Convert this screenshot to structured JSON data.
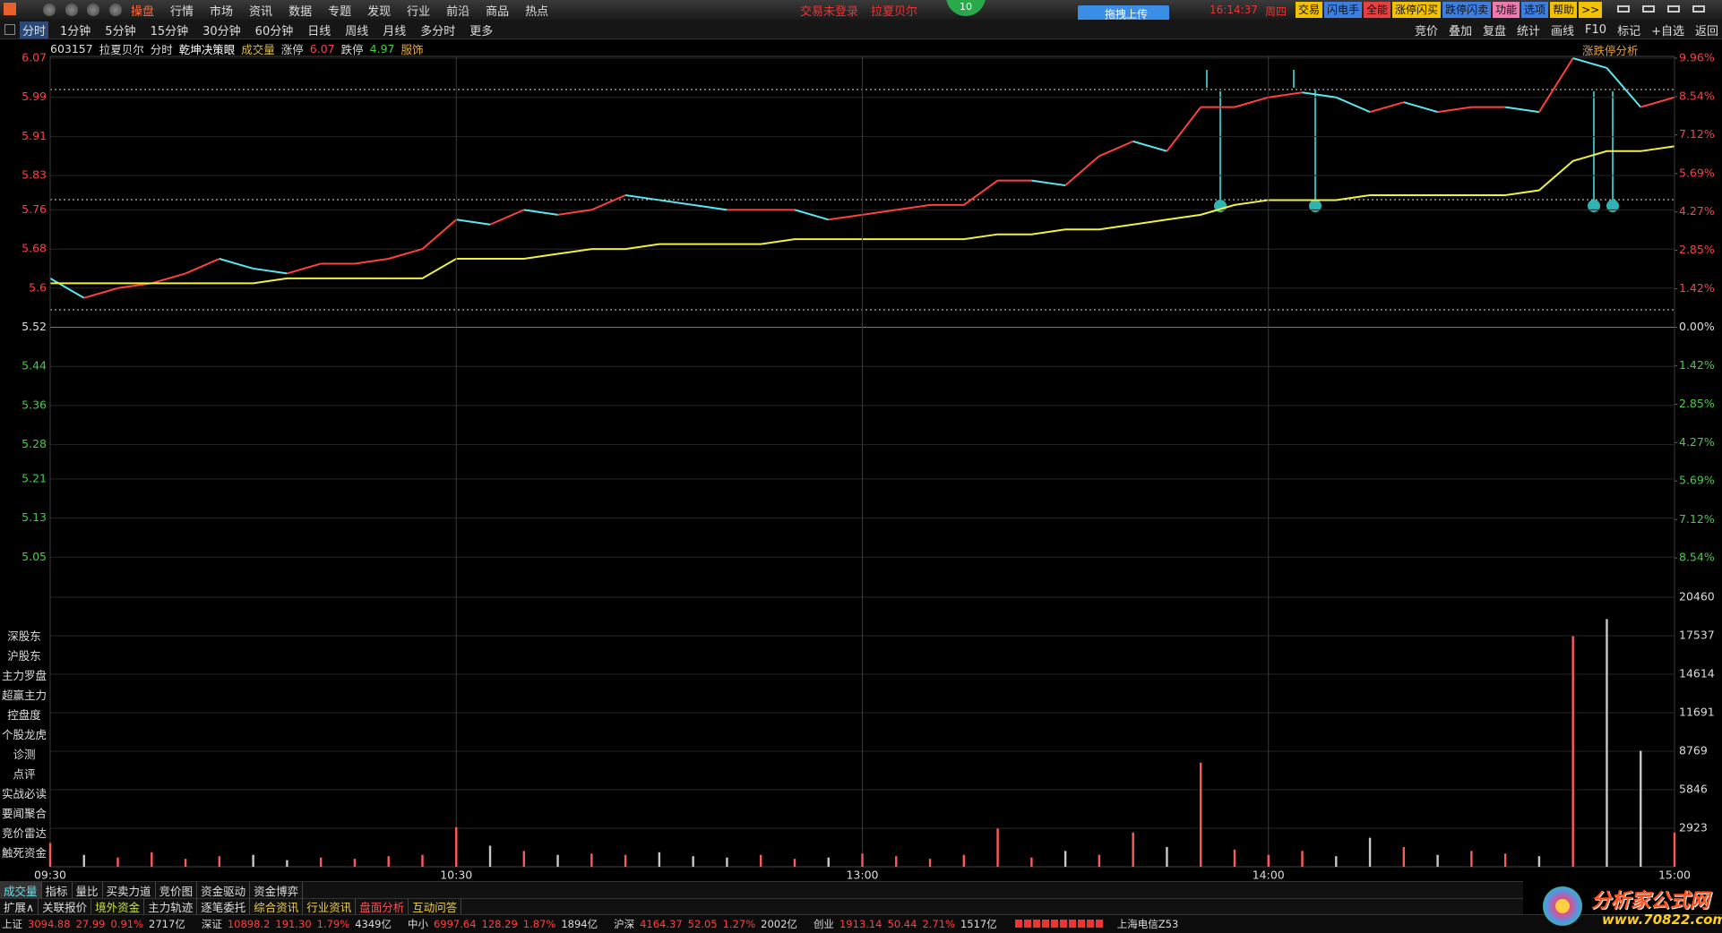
{
  "menu": {
    "items": [
      "操盘",
      "行情",
      "市场",
      "资讯",
      "数据",
      "专题",
      "发现",
      "行业",
      "前沿",
      "商品",
      "热点"
    ],
    "notice": "交易未登录",
    "stock": "拉夏贝尔",
    "badge": "10",
    "upload": "拖拽上传",
    "time": "16:14:37",
    "weekday": "周四",
    "buttons": [
      "交易",
      "闪电手",
      "全能",
      "涨停闪买",
      "跌停闪卖",
      "功能",
      "选项",
      "帮助",
      ">>"
    ]
  },
  "toolbar": {
    "periods": [
      "分时",
      "1分钟",
      "5分钟",
      "15分钟",
      "30分钟",
      "60分钟",
      "日线",
      "周线",
      "月线",
      "多分时",
      "更多"
    ],
    "tools": [
      "竞价",
      "叠加",
      "复盘",
      "统计",
      "画线",
      "F10",
      "标记",
      "+自选",
      "返回"
    ]
  },
  "info": {
    "code": "603157",
    "name": "拉夏贝尔",
    "mode": "分时",
    "strategy": "乾坤决策眼",
    "volume_label": "成交量",
    "limit_up_label": "涨停",
    "limit_up": "6.07",
    "limit_down_label": "跌停",
    "limit_down": "4.97",
    "industry": "服饰",
    "panel": "涨跌停分析"
  },
  "chart_data": [
    {
      "type": "line",
      "x": [
        0,
        5,
        10,
        15,
        20,
        25,
        30,
        35,
        40,
        45,
        50,
        55,
        60,
        65,
        70,
        75,
        80,
        85,
        90,
        95,
        100,
        105,
        110,
        115,
        120,
        125,
        130,
        135,
        140,
        145,
        150,
        155,
        160,
        165,
        170,
        175,
        180,
        185,
        190,
        195,
        200,
        205,
        210,
        215,
        220,
        225,
        230,
        235,
        240
      ],
      "xlim": [
        0,
        240
      ],
      "ylim": [
        4.97,
        6.07
      ],
      "yticks": [
        6.07,
        5.99,
        5.91,
        5.83,
        5.76,
        5.68,
        5.6,
        5.52,
        5.44,
        5.36,
        5.28,
        5.21,
        5.13,
        5.05
      ],
      "y2lim": [
        -9.96,
        9.96
      ],
      "y2ticks": [
        {
          "value": 9.96,
          "label": "9.96%"
        },
        {
          "value": 8.54,
          "label": "8.54%"
        },
        {
          "value": 7.12,
          "label": "7.12%"
        },
        {
          "value": 5.69,
          "label": "5.69%"
        },
        {
          "value": 4.27,
          "label": "4.27%"
        },
        {
          "value": 2.85,
          "label": "2.85%"
        },
        {
          "value": 1.42,
          "label": "1.42%"
        },
        {
          "value": 0,
          "label": "0.00%"
        },
        {
          "value": -1.42,
          "label": "1.42%"
        },
        {
          "value": -2.85,
          "label": "2.85%"
        },
        {
          "value": -4.27,
          "label": "4.27%"
        },
        {
          "value": -5.69,
          "label": "5.69%"
        },
        {
          "value": -7.12,
          "label": "7.12%"
        },
        {
          "value": -8.54,
          "label": "8.54%"
        }
      ],
      "grid": true,
      "series": [
        {
          "color": "#ff4040",
          "down_color": "#5ae6f0",
          "values": [
            5.62,
            5.58,
            5.6,
            5.61,
            5.63,
            5.66,
            5.64,
            5.63,
            5.65,
            5.65,
            5.66,
            5.68,
            5.74,
            5.73,
            5.76,
            5.75,
            5.76,
            5.79,
            5.78,
            5.77,
            5.76,
            5.76,
            5.76,
            5.74,
            5.75,
            5.76,
            5.77,
            5.77,
            5.82,
            5.82,
            5.81,
            5.87,
            5.9,
            5.88,
            5.97,
            5.97,
            5.99,
            6.0,
            5.99,
            5.96,
            5.98,
            5.96,
            5.97,
            5.97,
            5.96,
            6.07,
            6.05,
            5.97,
            5.99
          ]
        },
        {
          "color": "#f0f040",
          "values": [
            5.61,
            5.61,
            5.61,
            5.61,
            5.61,
            5.61,
            5.61,
            5.62,
            5.62,
            5.62,
            5.62,
            5.62,
            5.66,
            5.66,
            5.66,
            5.67,
            5.68,
            5.68,
            5.69,
            5.69,
            5.69,
            5.69,
            5.7,
            5.7,
            5.7,
            5.7,
            5.7,
            5.7,
            5.71,
            5.71,
            5.72,
            5.72,
            5.73,
            5.74,
            5.75,
            5.77,
            5.78,
            5.78,
            5.78,
            5.79,
            5.79,
            5.79,
            5.79,
            5.79,
            5.8,
            5.86,
            5.88,
            5.88,
            5.89
          ]
        }
      ]
    },
    {
      "type": "bar",
      "x": [
        0,
        5,
        10,
        15,
        20,
        25,
        30,
        35,
        40,
        45,
        50,
        55,
        60,
        65,
        70,
        75,
        80,
        85,
        90,
        95,
        100,
        105,
        110,
        115,
        120,
        125,
        130,
        135,
        140,
        145,
        150,
        155,
        160,
        165,
        170,
        175,
        180,
        185,
        190,
        195,
        200,
        205,
        210,
        215,
        220,
        225,
        230,
        235,
        240
      ],
      "xlim": [
        0,
        240
      ],
      "xticks": [
        {
          "value": 0,
          "label": "09:30"
        },
        {
          "value": 60,
          "label": "10:30"
        },
        {
          "value": 120,
          "label": "13:00"
        },
        {
          "value": 180,
          "label": "14:00"
        },
        {
          "value": 240,
          "label": "15:00"
        }
      ],
      "ylim": [
        0,
        20460
      ],
      "yticks": [
        20460,
        17537,
        14614,
        11691,
        8769,
        5846,
        2923
      ],
      "grid": true,
      "up_color": "#ff5a5a",
      "down_color": "#c8c8c8",
      "values": [
        1800,
        900,
        700,
        1100,
        600,
        800,
        900,
        500,
        700,
        600,
        800,
        900,
        3000,
        1600,
        1200,
        900,
        1000,
        900,
        1100,
        800,
        700,
        900,
        600,
        700,
        1000,
        800,
        600,
        900,
        2900,
        700,
        1200,
        900,
        2600,
        1500,
        7900,
        1300,
        900,
        1200,
        800,
        2200,
        1500,
        900,
        1200,
        1000,
        800,
        17500,
        18800,
        8800,
        2600
      ]
    }
  ],
  "side_panel": [
    "深股东",
    "沪股东",
    "主力罗盘",
    "超赢主力",
    "控盘度",
    "个股龙虎",
    "诊测",
    "点评",
    "实战必读",
    "要闻聚合",
    "竞价雷达",
    "触死资金"
  ],
  "tabs_row1": [
    "成交量",
    "指标",
    "量比",
    "买卖力道",
    "竞价图",
    "资金驱动",
    "资金博弈"
  ],
  "tabs_row2": [
    "扩展∧",
    "关联报价",
    "境外资金",
    "主力轨迹",
    "逐笔委托",
    "综合资讯",
    "行业资讯",
    "盘面分析",
    "互动问答"
  ],
  "status": {
    "indices": [
      {
        "name": "上证",
        "price": "3094.88",
        "change": "27.99",
        "pct": "0.91%",
        "amount": "2717亿"
      },
      {
        "name": "深证",
        "price": "10898.2",
        "change": "191.30",
        "pct": "1.79%",
        "amount": "4349亿"
      },
      {
        "name": "中小",
        "price": "6997.64",
        "change": "128.29",
        "pct": "1.87%",
        "amount": "1894亿"
      },
      {
        "name": "沪深",
        "price": "4164.37",
        "change": "52.05",
        "pct": "1.27%",
        "amount": "2002亿"
      },
      {
        "name": "创业",
        "price": "1913.14",
        "change": "50.44",
        "pct": "2.71%",
        "amount": "1517亿"
      }
    ],
    "server": "上海电信Z53"
  },
  "watermark": {
    "title": "分析家公式网",
    "url": "www.70822.com"
  }
}
